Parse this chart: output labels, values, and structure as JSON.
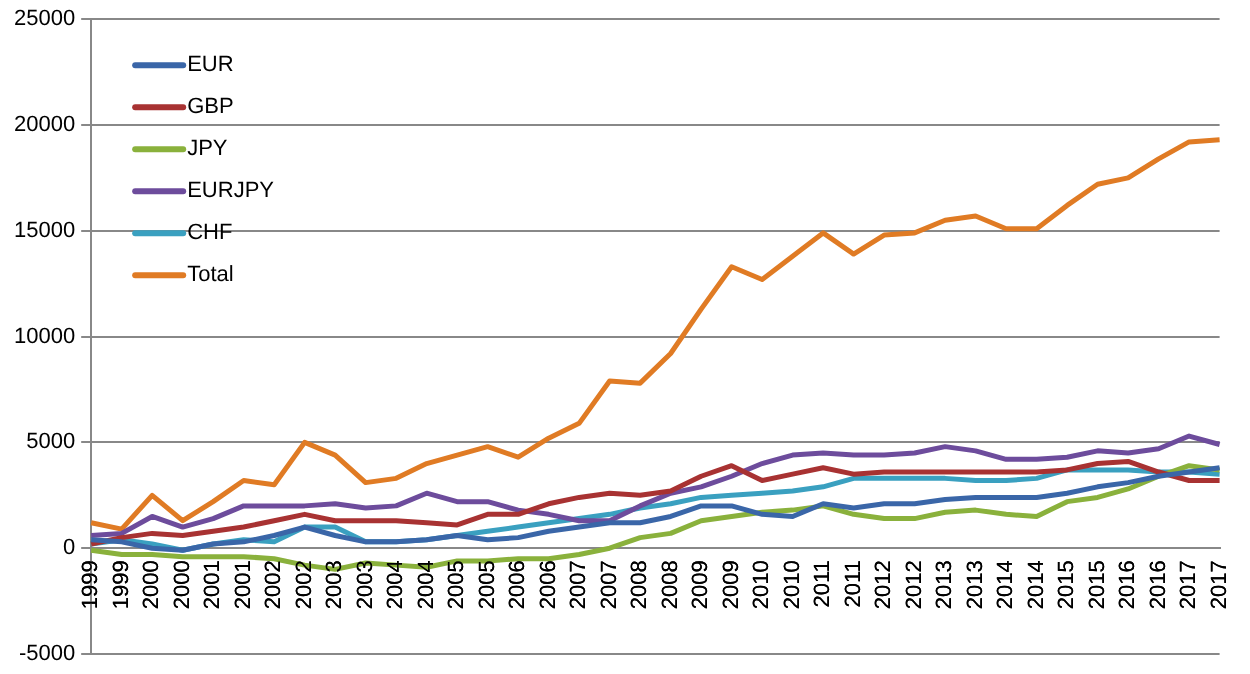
{
  "chart_data": {
    "type": "line",
    "categories": [
      "1999",
      "1999",
      "2000",
      "2000",
      "2001",
      "2001",
      "2002",
      "2002",
      "2003",
      "2003",
      "2004",
      "2004",
      "2005",
      "2005",
      "2006",
      "2006",
      "2007",
      "2007",
      "2008",
      "2008",
      "2009",
      "2009",
      "2010",
      "2010",
      "2011",
      "2011",
      "2012",
      "2012",
      "2013",
      "2013",
      "2014",
      "2014",
      "2015",
      "2015",
      "2016",
      "2016",
      "2017",
      "2017"
    ],
    "series": [
      {
        "name": "EUR",
        "color": "#3a66a8",
        "values": [
          400,
          300,
          0,
          -100,
          200,
          300,
          600,
          1000,
          600,
          300,
          300,
          400,
          600,
          400,
          500,
          800,
          1000,
          1200,
          1200,
          1500,
          2000,
          2000,
          1600,
          1500,
          2100,
          1900,
          2100,
          2100,
          2300,
          2400,
          2400,
          2400,
          2600,
          2900,
          3100,
          3400,
          3600,
          3800
        ]
      },
      {
        "name": "GBP",
        "color": "#a83232",
        "values": [
          200,
          500,
          700,
          600,
          800,
          1000,
          1300,
          1600,
          1300,
          1300,
          1300,
          1200,
          1100,
          1600,
          1600,
          2100,
          2400,
          2600,
          2500,
          2700,
          3400,
          3900,
          3200,
          3500,
          3800,
          3500,
          3600,
          3600,
          3600,
          3600,
          3600,
          3600,
          3700,
          4000,
          4100,
          3600,
          3200,
          3200
        ]
      },
      {
        "name": "JPY",
        "color": "#8ab13c",
        "values": [
          -100,
          -300,
          -300,
          -400,
          -400,
          -400,
          -500,
          -800,
          -1000,
          -700,
          -800,
          -900,
          -600,
          -600,
          -500,
          -500,
          -300,
          0,
          500,
          700,
          1300,
          1500,
          1700,
          1800,
          2000,
          1600,
          1400,
          1400,
          1700,
          1800,
          1600,
          1500,
          2200,
          2400,
          2800,
          3400,
          3900,
          3700
        ]
      },
      {
        "name": "EURJPY",
        "color": "#6d4c9c",
        "values": [
          600,
          700,
          1500,
          1000,
          1400,
          2000,
          2000,
          2000,
          2100,
          1900,
          2000,
          2600,
          2200,
          2200,
          1800,
          1600,
          1300,
          1300,
          2000,
          2600,
          2900,
          3400,
          4000,
          4400,
          4500,
          4400,
          4400,
          4500,
          4800,
          4600,
          4200,
          4200,
          4300,
          4600,
          4500,
          4700,
          5300,
          4900
        ]
      },
      {
        "name": "CHF",
        "color": "#3aa0c0",
        "values": [
          200,
          400,
          200,
          -100,
          200,
          400,
          300,
          1000,
          1000,
          300,
          300,
          400,
          600,
          800,
          1000,
          1200,
          1400,
          1600,
          1900,
          2100,
          2400,
          2500,
          2600,
          2700,
          2900,
          3300,
          3300,
          3300,
          3300,
          3200,
          3200,
          3300,
          3700,
          3700,
          3700,
          3600,
          3600,
          3500
        ]
      },
      {
        "name": "Total",
        "color": "#e07b24",
        "values": [
          1200,
          900,
          2500,
          1300,
          2200,
          3200,
          3000,
          5000,
          4400,
          3100,
          3300,
          4000,
          4400,
          4800,
          4300,
          5200,
          5900,
          7900,
          7800,
          9200,
          11300,
          13300,
          12700,
          13800,
          14900,
          13900,
          14800,
          14900,
          15500,
          15700,
          15100,
          15100,
          16200,
          17200,
          17500,
          18400,
          19200,
          19300
        ]
      }
    ],
    "ylim": [
      -5000,
      25000
    ],
    "yticks": [
      -5000,
      0,
      5000,
      10000,
      15000,
      20000,
      25000
    ],
    "grid": "y",
    "legend": "top left",
    "marker": "none",
    "line_style": "solid"
  }
}
